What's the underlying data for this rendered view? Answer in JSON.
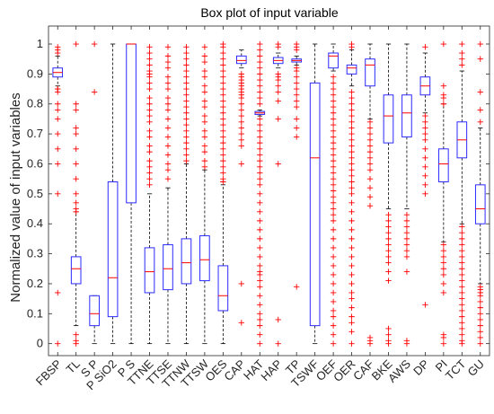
{
  "chart_data": {
    "type": "box",
    "title": "Box plot of input variable",
    "xlabel": "",
    "ylabel": "Normalized value of input variables",
    "ylim": [
      -0.04,
      1.06
    ],
    "yticks": [
      0,
      0.1,
      0.2,
      0.3,
      0.4,
      0.5,
      0.6,
      0.7,
      0.8,
      0.9,
      1
    ],
    "grid": false,
    "colors": {
      "box": "#2b2bff",
      "median": "#ff0000",
      "whisker": "#000000",
      "outlier": "#ff0000",
      "axis": "#262626"
    },
    "categories": [
      "FBSP",
      "TL",
      "S P",
      "P SiO2",
      "P S",
      "TTNE",
      "TTSE",
      "TTNW",
      "TTSW",
      "OES",
      "CAP",
      "HAT",
      "HAP",
      "TP",
      "TSWF",
      "OEF",
      "OER",
      "CAF",
      "BKE",
      "AWS",
      "DP",
      "PI",
      "TCT",
      "GU"
    ],
    "boxes": [
      {
        "min": 0.86,
        "q1": 0.89,
        "median": 0.905,
        "q3": 0.92,
        "max": 0.96,
        "outliers": [
          0.99,
          0.98,
          0.97,
          0.85,
          0.85,
          0.84,
          0.8,
          0.78,
          0.75,
          0.7,
          0.65,
          0.6,
          0.5,
          0.17,
          0
        ]
      },
      {
        "min": 0.06,
        "q1": 0.2,
        "median": 0.25,
        "q3": 0.29,
        "max": 0.44,
        "outliers": [
          1,
          0.8,
          0.78,
          0.72,
          0.7,
          0.65,
          0.6,
          0.55,
          0.5,
          0.47,
          0.45,
          0.44,
          0.03,
          0.01,
          0
        ]
      },
      {
        "min": 0,
        "q1": 0.06,
        "median": 0.1,
        "q3": 0.16,
        "max": 0.16,
        "outliers": [
          0.84,
          1
        ]
      },
      {
        "min": 0,
        "q1": 0.09,
        "median": 0.22,
        "q3": 0.54,
        "max": 1,
        "outliers": []
      },
      {
        "min": 0,
        "q1": 0.47,
        "median": 1,
        "q3": 1,
        "max": 1,
        "outliers": []
      },
      {
        "min": 0,
        "q1": 0.17,
        "median": 0.24,
        "q3": 0.32,
        "max": 0.5,
        "outliers": [
          0.99,
          0.97,
          0.95,
          0.93,
          0.91,
          0.9,
          0.89,
          0.87,
          0.85,
          0.82,
          0.8,
          0.78,
          0.76,
          0.74,
          0.71,
          0.69,
          0.66,
          0.64,
          0.61,
          0.59,
          0.57,
          0.55,
          0.53
        ]
      },
      {
        "min": 0,
        "q1": 0.18,
        "median": 0.25,
        "q3": 0.33,
        "max": 0.52,
        "outliers": [
          0.99,
          0.96,
          0.94,
          0.92,
          0.89,
          0.87,
          0.85,
          0.82,
          0.8,
          0.78,
          0.75,
          0.72,
          0.69,
          0.66,
          0.63,
          0.6,
          0.58,
          0.55
        ]
      },
      {
        "min": 0,
        "q1": 0.2,
        "median": 0.27,
        "q3": 0.35,
        "max": 0.6,
        "outliers": [
          0.99,
          0.97,
          0.95,
          0.93,
          0.91,
          0.89,
          0.87,
          0.85,
          0.83,
          0.81,
          0.79,
          0.77,
          0.75,
          0.73,
          0.71,
          0.69,
          0.67,
          0.65,
          0.63,
          0.61
        ]
      },
      {
        "min": 0,
        "q1": 0.21,
        "median": 0.28,
        "q3": 0.36,
        "max": 0.58,
        "outliers": [
          0.99,
          0.96,
          0.94,
          0.91,
          0.89,
          0.86,
          0.84,
          0.81,
          0.79,
          0.76,
          0.74,
          0.71,
          0.69,
          0.66,
          0.64,
          0.61,
          0.59
        ]
      },
      {
        "min": 0,
        "q1": 0.11,
        "median": 0.16,
        "q3": 0.26,
        "max": 0.53,
        "outliers": [
          1,
          0.99,
          0.97,
          0.95,
          0.93,
          0.91,
          0.89,
          0.87,
          0.85,
          0.83,
          0.81,
          0.79,
          0.77,
          0.75,
          0.73,
          0.71,
          0.69,
          0.67,
          0.65,
          0.63,
          0.61,
          0.59,
          0.57,
          0.55,
          0.54
        ]
      },
      {
        "min": 0.92,
        "q1": 0.935,
        "median": 0.945,
        "q3": 0.96,
        "max": 0.98,
        "outliers": [
          0.9,
          0.89,
          0.88,
          0.87,
          0.86,
          0.85,
          0.84,
          0.83,
          0.82,
          0.8,
          0.78,
          0.76,
          0.74,
          0.72,
          0.7,
          0.68,
          0.66,
          0.6,
          0.2,
          0.07
        ]
      },
      {
        "min": 0.76,
        "q1": 0.765,
        "median": 0.77,
        "q3": 0.775,
        "max": 0.78,
        "outliers": [
          1,
          0.98,
          0.96,
          0.94,
          0.92,
          0.9,
          0.88,
          0.86,
          0.84,
          0.82,
          0.8,
          0.75,
          0.73,
          0.71,
          0.69,
          0.67,
          0.65,
          0.63,
          0.61,
          0.59,
          0.57,
          0.55,
          0.53,
          0.5,
          0.47,
          0.44,
          0.41,
          0.38,
          0.35,
          0.32,
          0.29,
          0.26,
          0.24,
          0.23,
          0.21,
          0.19,
          0.16,
          0.13,
          0.1,
          0.08,
          0.06,
          0.03,
          0
        ]
      },
      {
        "min": 0.92,
        "q1": 0.935,
        "median": 0.945,
        "q3": 0.955,
        "max": 0.97,
        "outliers": [
          1,
          0.99,
          0.9,
          0.89,
          0.88,
          0.86,
          0.84,
          0.81,
          0.75,
          0.6,
          0.08,
          0
        ]
      },
      {
        "min": 0.93,
        "q1": 0.94,
        "median": 0.945,
        "q3": 0.95,
        "max": 0.96,
        "outliers": [
          1,
          0.99,
          0.98,
          0.92,
          0.91,
          0.89,
          0.87,
          0.85,
          0.83,
          0.81,
          0.79,
          0.75,
          0.72,
          0.69,
          0.19
        ]
      },
      {
        "min": 0,
        "q1": 0.06,
        "median": 0.62,
        "q3": 0.87,
        "max": 1,
        "outliers": []
      },
      {
        "min": 0.91,
        "q1": 0.92,
        "median": 0.96,
        "q3": 0.97,
        "max": 1,
        "outliers": [
          0.89,
          0.87,
          0.85,
          0.83,
          0.81,
          0.79,
          0.77,
          0.75,
          0.73,
          0.71,
          0.69,
          0.67,
          0.65,
          0.63,
          0.61,
          0.59,
          0.57,
          0.55,
          0.53,
          0.51,
          0.49,
          0.47,
          0.45,
          0.43,
          0.41,
          0.38,
          0.35,
          0.32,
          0.29,
          0.26,
          0.23,
          0.2,
          0.17,
          0.14,
          0.11,
          0.09,
          0.06,
          0.03,
          0
        ]
      },
      {
        "min": 0.86,
        "q1": 0.9,
        "median": 0.92,
        "q3": 0.93,
        "max": 0.98,
        "outliers": [
          1,
          0.99,
          0.84,
          0.82,
          0.8,
          0.78,
          0.76,
          0.74,
          0.72,
          0.7,
          0.68,
          0.66,
          0.64,
          0.62,
          0.6,
          0.58,
          0.56,
          0.54,
          0.52,
          0.5,
          0.47,
          0.44,
          0.41,
          0.38,
          0.35,
          0.32,
          0.29,
          0.26,
          0.23,
          0.2,
          0.17,
          0.15,
          0.12,
          0.09,
          0.07,
          0.04,
          0
        ]
      },
      {
        "min": 0.75,
        "q1": 0.86,
        "median": 0.93,
        "q3": 0.95,
        "max": 1,
        "outliers": [
          0.74,
          0.72,
          0.7,
          0.68,
          0.66,
          0.64,
          0.62,
          0.6,
          0.58,
          0.55,
          0.52,
          0.49,
          0.46,
          0.02,
          0.01,
          0
        ]
      },
      {
        "min": 0.45,
        "q1": 0.67,
        "median": 0.76,
        "q3": 0.83,
        "max": 1,
        "outliers": [
          0.43,
          0.41,
          0.39,
          0.37,
          0.35,
          0.33,
          0.31,
          0.29,
          0.27,
          0.24,
          0.21,
          0.05,
          0.03,
          0.01,
          0
        ]
      },
      {
        "min": 0.45,
        "q1": 0.69,
        "median": 0.77,
        "q3": 0.83,
        "max": 1,
        "outliers": [
          0.43,
          0.41,
          0.39,
          0.37,
          0.35,
          0.33,
          0.31,
          0.29,
          0.24,
          0.01,
          0
        ]
      },
      {
        "min": 0.77,
        "q1": 0.83,
        "median": 0.86,
        "q3": 0.89,
        "max": 0.97,
        "outliers": [
          0.99,
          0.76,
          0.74,
          0.72,
          0.7,
          0.68,
          0.65,
          0.62,
          0.59,
          0.56,
          0.53,
          0.5,
          0.13
        ]
      },
      {
        "min": 0.34,
        "q1": 0.54,
        "median": 0.6,
        "q3": 0.65,
        "max": 0.8,
        "outliers": [
          1,
          0.86,
          0.83,
          0.82,
          0.8,
          0.33,
          0.31,
          0.29,
          0.27,
          0.25,
          0.23,
          0.2,
          0.17,
          0.03,
          0.02,
          0
        ]
      },
      {
        "min": 0.4,
        "q1": 0.62,
        "median": 0.68,
        "q3": 0.74,
        "max": 0.91,
        "outliers": [
          1,
          0.97,
          0.95,
          0.93,
          0.39,
          0.37,
          0.35,
          0.33,
          0.31,
          0.29,
          0.27,
          0.25,
          0.23,
          0.21,
          0.19,
          0.17,
          0.15,
          0.13,
          0.11,
          0.09,
          0.07,
          0.05,
          0.03,
          0.01,
          0
        ]
      },
      {
        "min": 0.2,
        "q1": 0.4,
        "median": 0.45,
        "q3": 0.53,
        "max": 0.72,
        "outliers": [
          1,
          0.95,
          0.84,
          0.78,
          0.74,
          0.19,
          0.18,
          0.17,
          0.16,
          0.14,
          0.12,
          0.1,
          0.08,
          0.06,
          0.04,
          0.02,
          0
        ]
      }
    ]
  }
}
